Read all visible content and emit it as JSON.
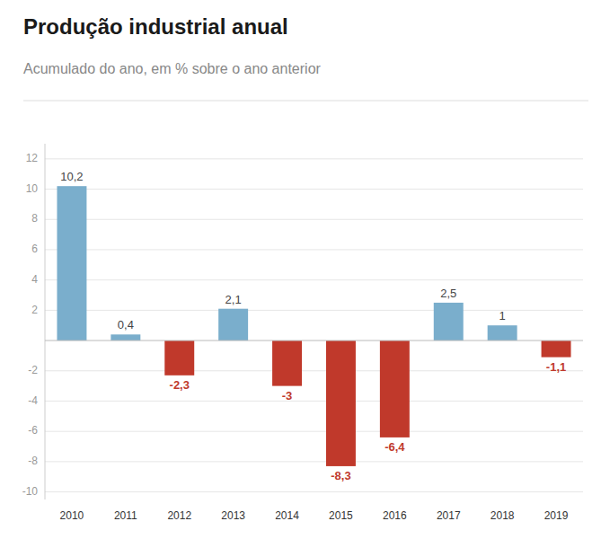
{
  "chart_data": {
    "type": "bar",
    "title": "Produção industrial anual",
    "subtitle": "Acumulado do ano, em % sobre o ano anterior",
    "categories": [
      "2010",
      "2011",
      "2012",
      "2013",
      "2014",
      "2015",
      "2016",
      "2017",
      "2018",
      "2019"
    ],
    "values": [
      10.2,
      0.4,
      -2.3,
      2.1,
      -3.0,
      -8.3,
      -6.4,
      2.5,
      1.0,
      -1.1
    ],
    "value_labels": [
      "10,2",
      "0,4",
      "-2,3",
      "2,1",
      "-3",
      "-8,3",
      "-6,4",
      "2,5",
      "1",
      "-1,1"
    ],
    "data_labels": true,
    "colors": [
      "#7aaecc",
      "#7aaecc",
      "#c0392b",
      "#7aaecc",
      "#c0392b",
      "#c0392b",
      "#c0392b",
      "#7aaecc",
      "#7aaecc",
      "#c0392b"
    ],
    "ylim": [
      -10.5,
      13
    ],
    "yticks": [
      -10,
      -8,
      -6,
      -4,
      -2,
      2,
      4,
      6,
      8,
      10,
      12
    ],
    "grid": true
  }
}
